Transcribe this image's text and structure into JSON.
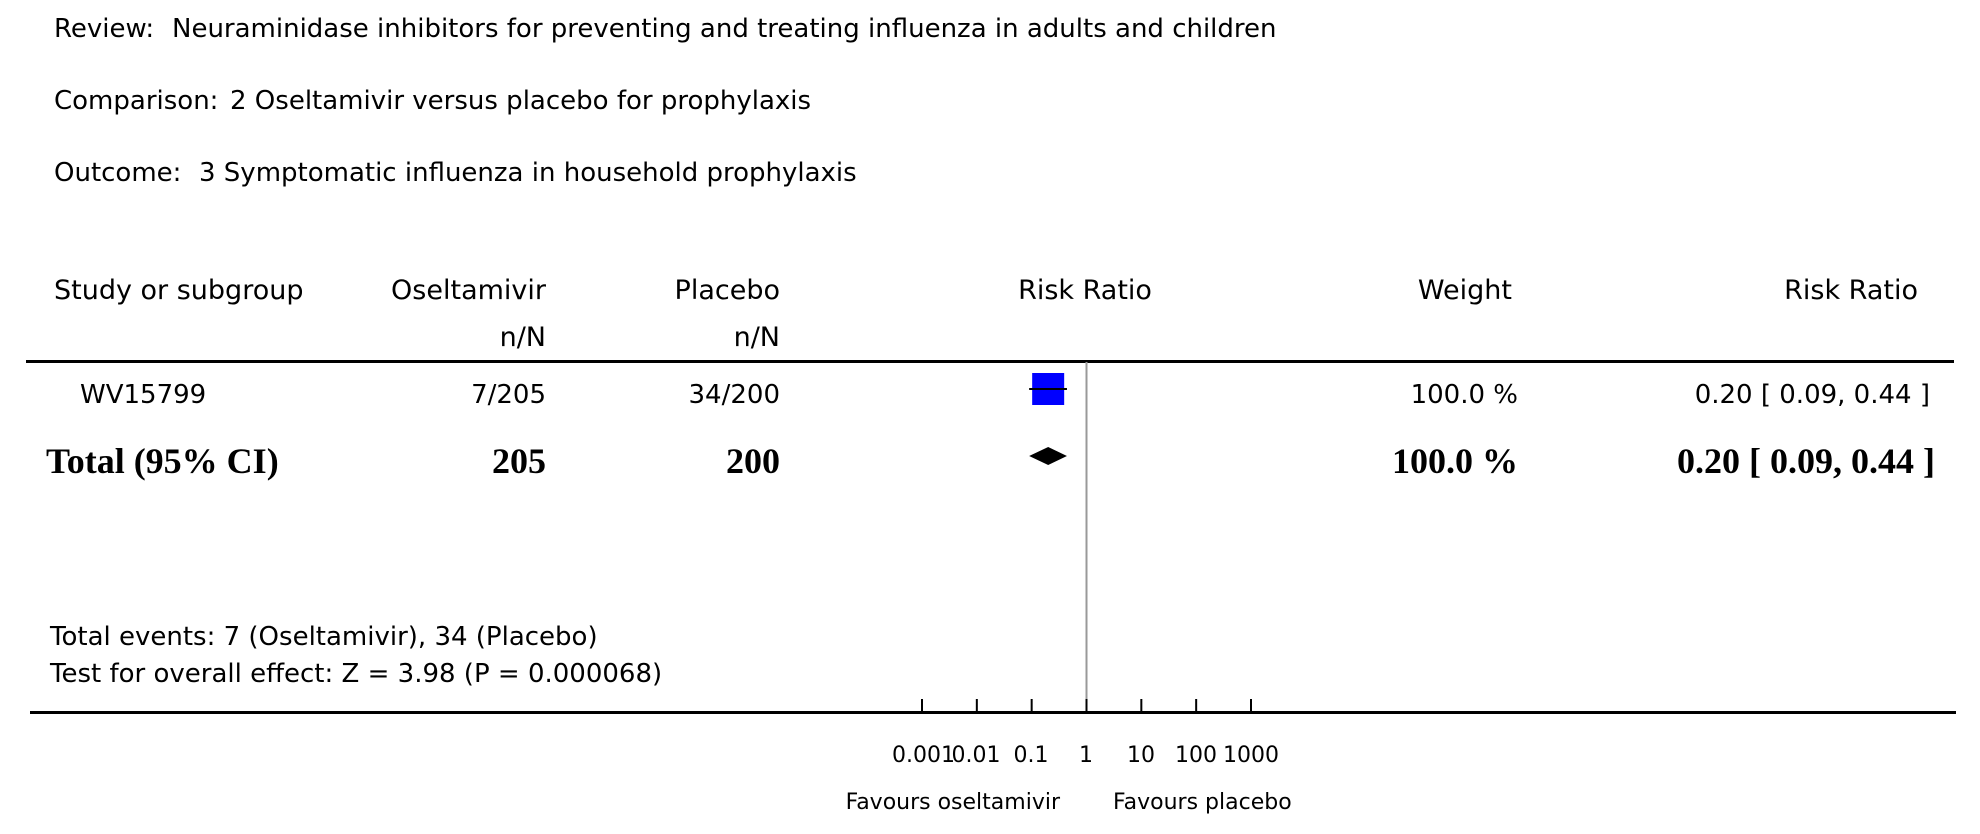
{
  "header": {
    "review_label": "Review:",
    "review_value": "Neuraminidase inhibitors for preventing and treating influenza in adults and children",
    "comparison_label": "Comparison:",
    "comparison_value": "2 Oseltamivir versus placebo for prophylaxis",
    "outcome_label": "Outcome:",
    "outcome_value": "3 Symptomatic influenza in household prophylaxis"
  },
  "columns": {
    "study": "Study or subgroup",
    "treatment": "Oseltamivir",
    "treatment_sub": "n/N",
    "control": "Placebo",
    "control_sub": "n/N",
    "effect": "Risk Ratio",
    "weight": "Weight",
    "effect_ci": "Risk Ratio"
  },
  "studies": [
    {
      "name": "WV15799",
      "treatment": "7/205",
      "control": "34/200",
      "weight": "100.0 %",
      "ci_text": "0.20 [ 0.09, 0.44 ]"
    }
  ],
  "total": {
    "label": "Total (95% CI)",
    "treatment": "205",
    "control": "200",
    "weight": "100.0 %",
    "ci_text": "0.20 [ 0.09, 0.44 ]"
  },
  "footer": {
    "events": "Total events: 7 (Oseltamivir), 34 (Placebo)",
    "overall_effect": "Test for overall effect: Z = 3.98 (P = 0.000068)"
  },
  "axis": {
    "ticks": [
      "0.001",
      "0.01",
      "0.1",
      "1",
      "10",
      "100",
      "1000"
    ],
    "favours_left": "Favours oseltamivir",
    "favours_right": "Favours placebo"
  },
  "colors": {
    "study_marker": "#0000ff",
    "total_marker": "#000000",
    "null_line": "#999999"
  },
  "chart_data": {
    "type": "forest",
    "scale": "log",
    "xlim": [
      0.001,
      1000
    ],
    "null_value": 1,
    "studies": [
      {
        "name": "WV15799",
        "rr": 0.2,
        "ci_low": 0.09,
        "ci_high": 0.44,
        "weight_pct": 100.0
      }
    ],
    "total": {
      "rr": 0.2,
      "ci_low": 0.09,
      "ci_high": 0.44
    }
  }
}
